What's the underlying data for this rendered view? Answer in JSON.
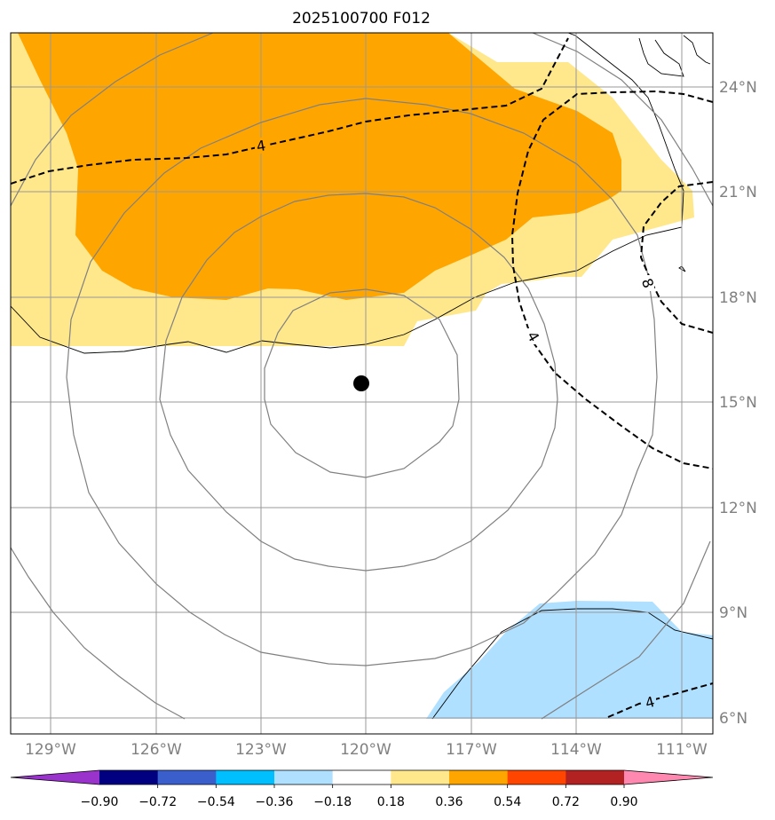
{
  "title": "2025100700 F012",
  "lon_labels": [
    "129°W",
    "126°W",
    "123°W",
    "120°W",
    "117°W",
    "114°W",
    "111°W"
  ],
  "lat_labels": [
    "24°N",
    "21°N",
    "18°N",
    "15°N",
    "12°N",
    "9°N",
    "6°N"
  ],
  "contour_labels": {
    "north": "4",
    "east_upper": "8",
    "east_lower": "4",
    "southeast": "4"
  },
  "colorbar": {
    "ticks": [
      "−0.90",
      "−0.72",
      "−0.54",
      "−0.36",
      "−0.18",
      "0.18",
      "0.36",
      "0.54",
      "0.72",
      "0.90"
    ],
    "colors": [
      "#9933cc",
      "#000080",
      "#3a5fcd",
      "#00bfff",
      "#b0e0ff",
      "#ffffff",
      "#ffe88c",
      "#ffa500",
      "#ff4500",
      "#b22222",
      "#ff88b0"
    ]
  },
  "shading_colors": {
    "light_yellow": "#ffe88c",
    "orange": "#ffa500",
    "light_blue": "#b0e0ff"
  },
  "storm_center": {
    "lon": -120.1,
    "lat": 15.5
  }
}
